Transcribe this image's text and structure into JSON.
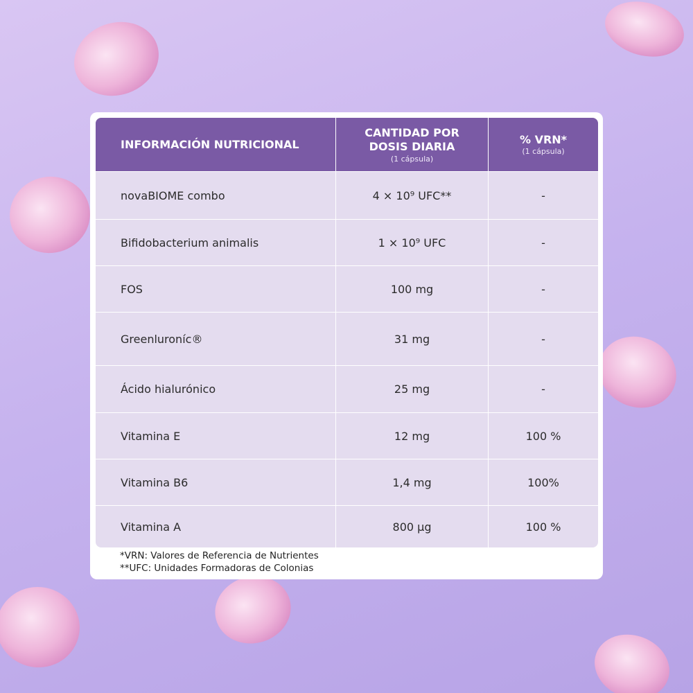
{
  "table": {
    "header": [
      {
        "title": "INFORMACIÓN NUTRICIONAL"
      },
      {
        "title": "CANTIDAD POR DOSIS DIARIA",
        "note": "(1 cápsula)"
      },
      {
        "title": "% VRN*",
        "note": "(1 cápsula)"
      }
    ],
    "rows": [
      [
        "novaBIOME combo",
        "4 × 10⁹ UFC**",
        "-"
      ],
      [
        "Bifidobacterium animalis",
        "1 × 10⁹ UFC",
        "-"
      ],
      [
        "FOS",
        "100 mg",
        "-"
      ],
      [
        "Greenluroníc®",
        "31 mg",
        "-"
      ],
      [
        "Ácido hialurónico",
        "25 mg",
        "-"
      ],
      [
        "Vitamina E",
        "12 mg",
        "100 %"
      ],
      [
        "Vitamina B6",
        "1,4 mg",
        "100%"
      ],
      [
        "Vitamina A",
        "800 µg",
        "100 %"
      ]
    ],
    "footnotes": [
      "*VRN: Valores de Referencia de Nutrientes",
      "**UFC: Unidades Formadoras de Colonias"
    ]
  }
}
